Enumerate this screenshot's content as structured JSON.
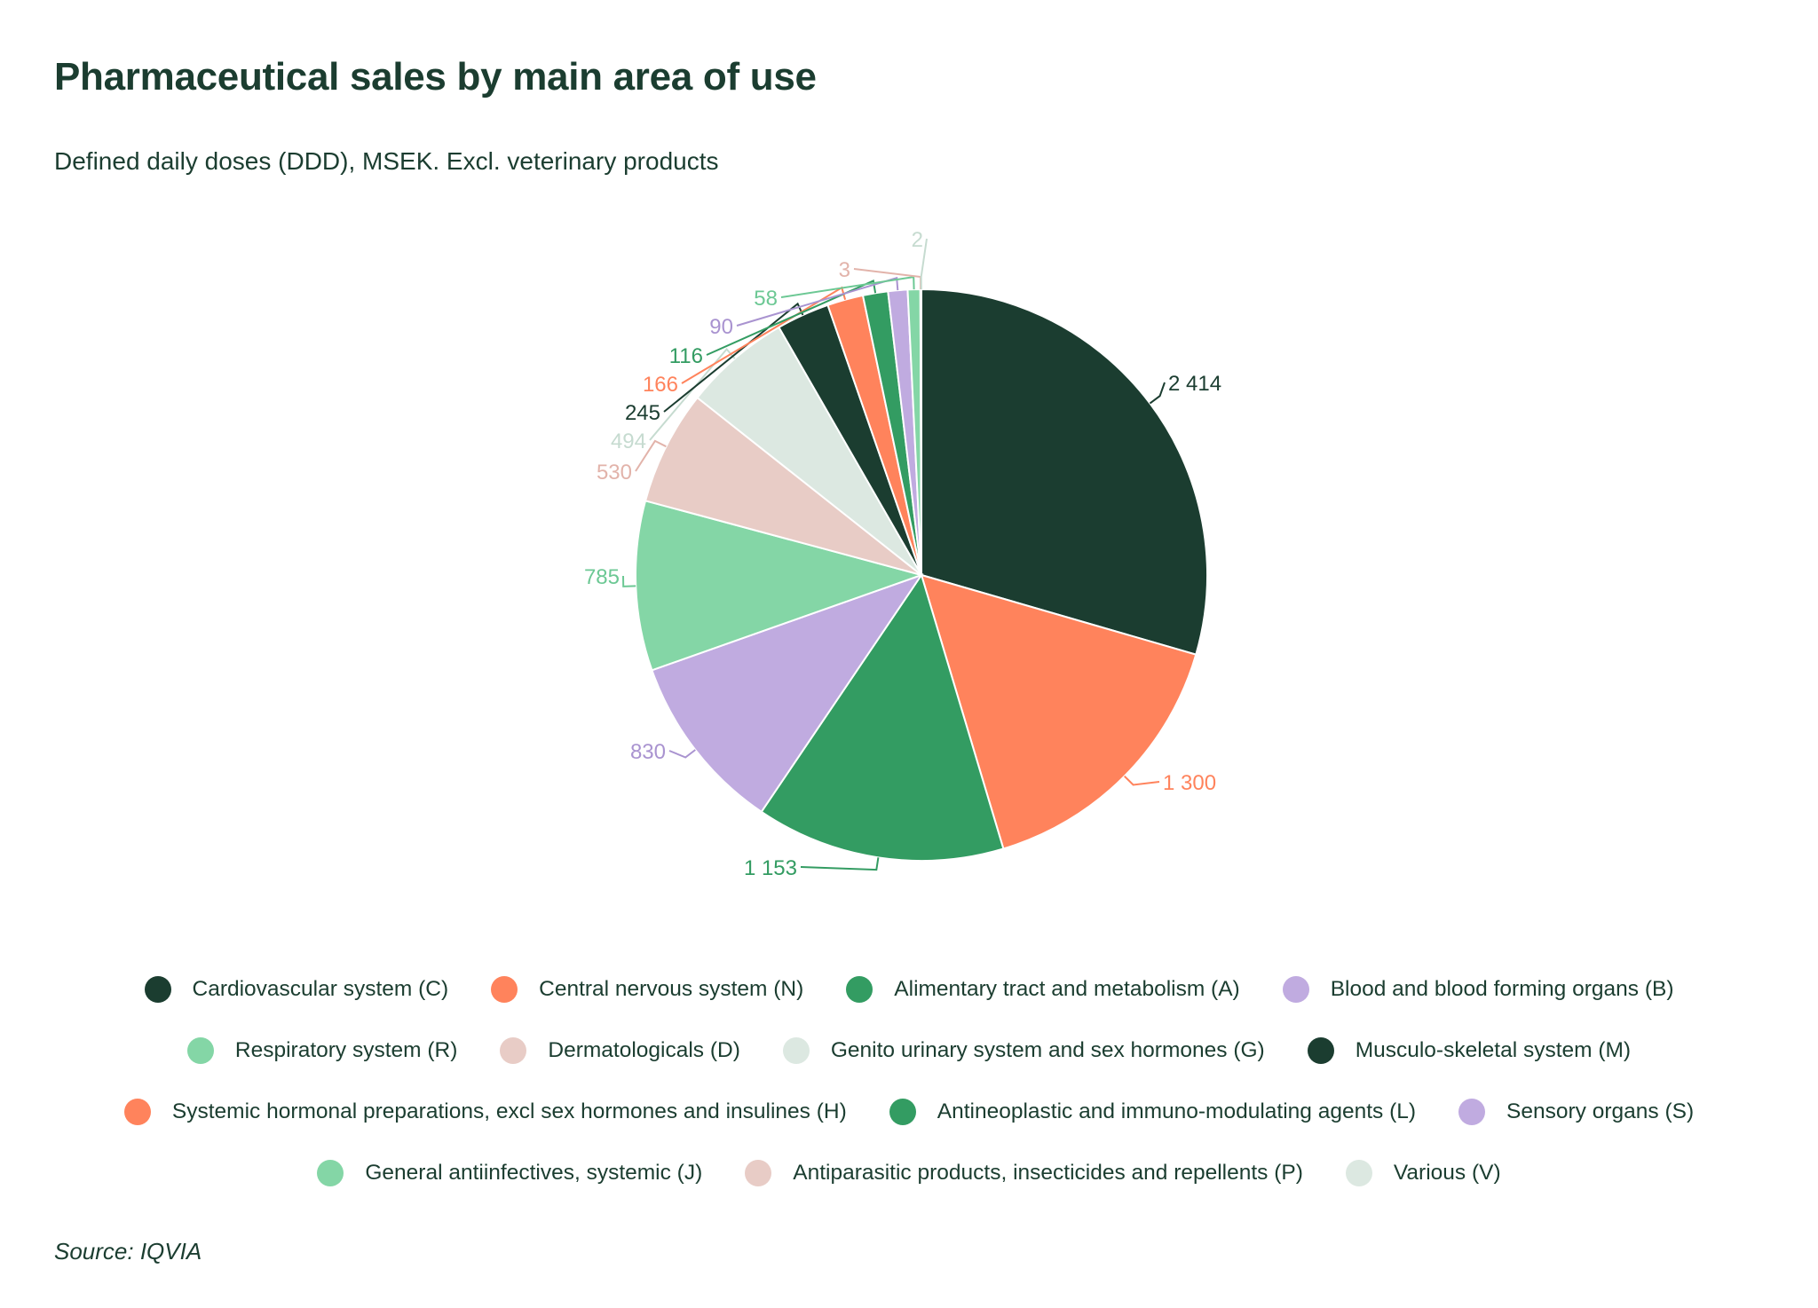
{
  "title": "Pharmaceutical sales by main area of use",
  "subtitle": "Defined daily doses (DDD), MSEK. Excl. veterinary products",
  "source": "Source: IQVIA",
  "colors": {
    "text": "#1b3d30",
    "dark_green": "#1b3d30",
    "orange": "#ff835c",
    "green": "#339c62",
    "lavender": "#c0abe0",
    "mint": "#84d6a6",
    "pink": "#e8ccc6",
    "pale": "#dce8e1"
  },
  "chart_data": {
    "type": "pie",
    "title": "Pharmaceutical sales by main area of use",
    "subtitle": "Defined daily doses (DDD), MSEK. Excl. veterinary products",
    "legend_position": "bottom",
    "slices": [
      {
        "name": "Cardiovascular system (C)",
        "value": 2414,
        "label": "2 414",
        "color": "#1b3d30",
        "label_color": "#1b3d30"
      },
      {
        "name": "Central nervous system (N)",
        "value": 1300,
        "label": "1 300",
        "color": "#ff835c",
        "label_color": "#ff835c"
      },
      {
        "name": "Alimentary tract and metabolism (A)",
        "value": 1153,
        "label": "1 153",
        "color": "#339c62",
        "label_color": "#339c62"
      },
      {
        "name": "Blood and blood forming organs (B)",
        "value": 830,
        "label": "830",
        "color": "#c0abe0",
        "label_color": "#a993d0"
      },
      {
        "name": "Respiratory system (R)",
        "value": 785,
        "label": "785",
        "color": "#84d6a6",
        "label_color": "#6cc894"
      },
      {
        "name": "Dermatologicals (D)",
        "value": 530,
        "label": "530",
        "color": "#e8ccc6",
        "label_color": "#e2b3aa"
      },
      {
        "name": "Genito urinary system and sex hormones (G)",
        "value": 494,
        "label": "494",
        "color": "#dce8e1",
        "label_color": "#c6dbd0"
      },
      {
        "name": "Musculo-skeletal system (M)",
        "value": 245,
        "label": "245",
        "color": "#1b3d30",
        "label_color": "#1b3d30"
      },
      {
        "name": "Systemic hormonal preparations, excl sex hormones and insulines (H)",
        "value": 166,
        "label": "166",
        "color": "#ff835c",
        "label_color": "#ff835c"
      },
      {
        "name": "Antineoplastic and immuno-modulating agents (L)",
        "value": 116,
        "label": "116",
        "color": "#339c62",
        "label_color": "#339c62"
      },
      {
        "name": "Sensory organs (S)",
        "value": 90,
        "label": "90",
        "color": "#c0abe0",
        "label_color": "#a993d0"
      },
      {
        "name": "General antiinfectives, systemic (J)",
        "value": 58,
        "label": "58",
        "color": "#84d6a6",
        "label_color": "#6cc894"
      },
      {
        "name": "Antiparasitic products, insecticides and repellents (P)",
        "value": 3,
        "label": "3",
        "color": "#e8ccc6",
        "label_color": "#e2b3aa"
      },
      {
        "name": "Various (V)",
        "value": 2,
        "label": "2",
        "color": "#dce8e1",
        "label_color": "#c6dbd0"
      }
    ]
  }
}
